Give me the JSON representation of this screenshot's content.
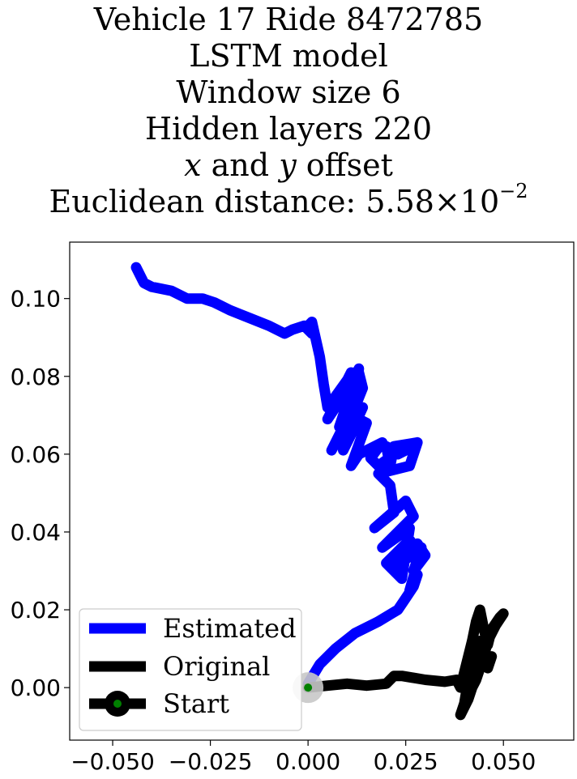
{
  "chart_data": {
    "type": "line",
    "title_lines": [
      "Vehicle 17 Ride 8472785",
      "LSTM model",
      "Window size 6",
      "Hidden layers 220"
    ],
    "title_offset": {
      "x": "x",
      "and": "and",
      "y": "y",
      "offset": "offset"
    },
    "title_distance": {
      "label": "Euclidean distance:",
      "mantissa": "5.58",
      "times": "×",
      "base": "10",
      "exponent": "−2"
    },
    "xlim": [
      -0.061,
      0.068
    ],
    "ylim": [
      -0.0135,
      0.1145
    ],
    "xticks": [
      -0.05,
      -0.025,
      0.0,
      0.025,
      0.05
    ],
    "yticks": [
      0.0,
      0.02,
      0.04,
      0.06,
      0.08,
      0.1
    ],
    "xtick_labels": [
      "−0.050",
      "−0.025",
      "0.000",
      "0.025",
      "0.050"
    ],
    "ytick_labels": [
      "0.00",
      "0.02",
      "0.04",
      "0.06",
      "0.08",
      "0.10"
    ],
    "legend_position": "lower-left",
    "series": [
      {
        "name": "Estimated",
        "color": "#0000ff",
        "x": [
          0.0,
          0.003,
          0.007,
          0.012,
          0.018,
          0.023,
          0.025,
          0.027,
          0.028,
          0.026,
          0.028,
          0.029,
          0.027,
          0.03,
          0.028,
          0.024,
          0.022,
          0.028,
          0.026,
          0.02,
          0.024,
          0.026,
          0.019,
          0.027,
          0.025,
          0.017,
          0.022,
          0.021,
          0.018,
          0.026,
          0.028,
          0.022,
          0.021,
          0.02,
          0.023,
          0.027,
          0.028,
          0.022,
          0.018,
          0.016,
          0.019,
          0.013,
          0.011,
          0.015,
          0.013,
          0.009,
          0.014,
          0.011,
          0.006,
          0.012,
          0.013,
          0.008,
          0.013,
          0.011,
          0.005,
          0.013,
          0.014,
          0.012,
          0.007,
          0.012,
          0.01,
          0.005,
          0.004,
          0.003,
          0.001,
          0.0,
          0.001,
          -0.001,
          -0.004,
          -0.006,
          -0.01,
          -0.015,
          -0.02,
          -0.024,
          -0.027,
          -0.031,
          -0.035,
          -0.04,
          -0.042,
          -0.043,
          -0.044
        ],
        "y": [
          0.001,
          0.006,
          0.01,
          0.014,
          0.017,
          0.02,
          0.023,
          0.026,
          0.029,
          0.025,
          0.032,
          0.036,
          0.03,
          0.034,
          0.037,
          0.034,
          0.031,
          0.035,
          0.038,
          0.032,
          0.028,
          0.041,
          0.036,
          0.044,
          0.048,
          0.041,
          0.045,
          0.052,
          0.055,
          0.057,
          0.063,
          0.062,
          0.057,
          0.062,
          0.06,
          0.062,
          0.063,
          0.06,
          0.057,
          0.059,
          0.063,
          0.06,
          0.057,
          0.068,
          0.069,
          0.061,
          0.072,
          0.07,
          0.061,
          0.073,
          0.082,
          0.067,
          0.079,
          0.081,
          0.069,
          0.081,
          0.077,
          0.072,
          0.074,
          0.081,
          0.079,
          0.072,
          0.078,
          0.085,
          0.094,
          0.093,
          0.091,
          0.093,
          0.092,
          0.091,
          0.093,
          0.095,
          0.097,
          0.099,
          0.1,
          0.1,
          0.102,
          0.103,
          0.104,
          0.106,
          0.108
        ]
      },
      {
        "name": "Original",
        "color": "#000000",
        "x": [
          0.0,
          0.005,
          0.01,
          0.015,
          0.02,
          0.022,
          0.024,
          0.027,
          0.03,
          0.035,
          0.038,
          0.039,
          0.04,
          0.041,
          0.042,
          0.043,
          0.044,
          0.045,
          0.046,
          0.047,
          0.049,
          0.05,
          0.048,
          0.046,
          0.045,
          0.044,
          0.043,
          0.042,
          0.041,
          0.04,
          0.039,
          0.04,
          0.041,
          0.043,
          0.044,
          0.045,
          0.046,
          0.047
        ],
        "y": [
          0.0,
          0.0005,
          0.001,
          0.0005,
          0.001,
          0.003,
          0.003,
          0.0025,
          0.002,
          0.0015,
          0.002,
          0.0,
          0.004,
          0.008,
          0.012,
          0.017,
          0.02,
          0.015,
          0.011,
          0.015,
          0.018,
          0.019,
          0.016,
          0.012,
          0.008,
          0.005,
          0.002,
          0.0,
          -0.003,
          -0.005,
          -0.007,
          -0.004,
          0.002,
          0.008,
          0.012,
          0.008,
          0.005,
          0.008
        ]
      }
    ],
    "start": {
      "name": "Start",
      "x": 0.0,
      "y": 0.0,
      "marker_color": "#008000",
      "marker_edge": "#000000",
      "highlight": "#c8c8c8"
    }
  }
}
